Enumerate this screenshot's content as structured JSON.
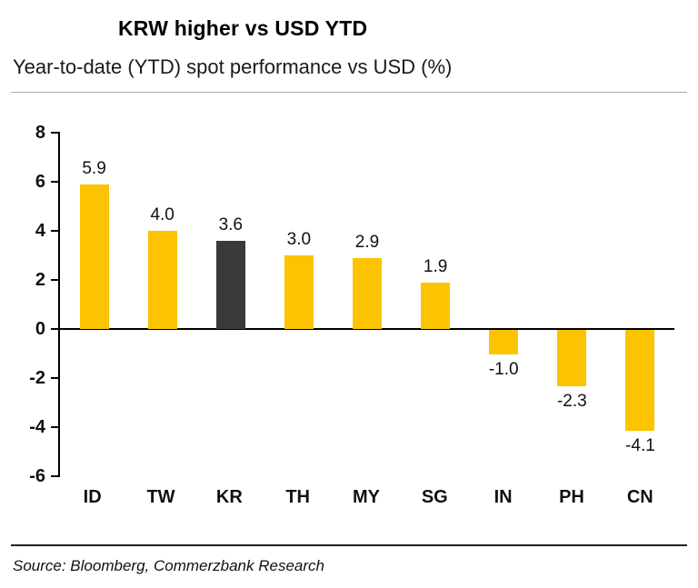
{
  "chart_data": {
    "type": "bar",
    "title": "KRW higher vs USD YTD",
    "subtitle": "Year-to-date (YTD) spot performance vs USD (%)",
    "categories": [
      "ID",
      "TW",
      "KR",
      "TH",
      "MY",
      "SG",
      "IN",
      "PH",
      "CN"
    ],
    "values": [
      5.9,
      4.0,
      3.6,
      3.0,
      2.9,
      1.9,
      -1.0,
      -2.3,
      -4.1
    ],
    "value_labels": [
      "5.9",
      "4.0",
      "3.6",
      "3.0",
      "2.9",
      "1.9",
      "-1.0",
      "-2.3",
      "-4.1"
    ],
    "ylim": [
      -6,
      8
    ],
    "yticks": [
      8,
      6,
      4,
      2,
      0,
      -2,
      -4,
      -6
    ],
    "grid": false,
    "legend": "none",
    "bar_color": "#FCC300",
    "highlight_category": "KR",
    "highlight_color": "#3A3A3A",
    "source": "Source: Bloomberg, Commerzbank Research"
  }
}
